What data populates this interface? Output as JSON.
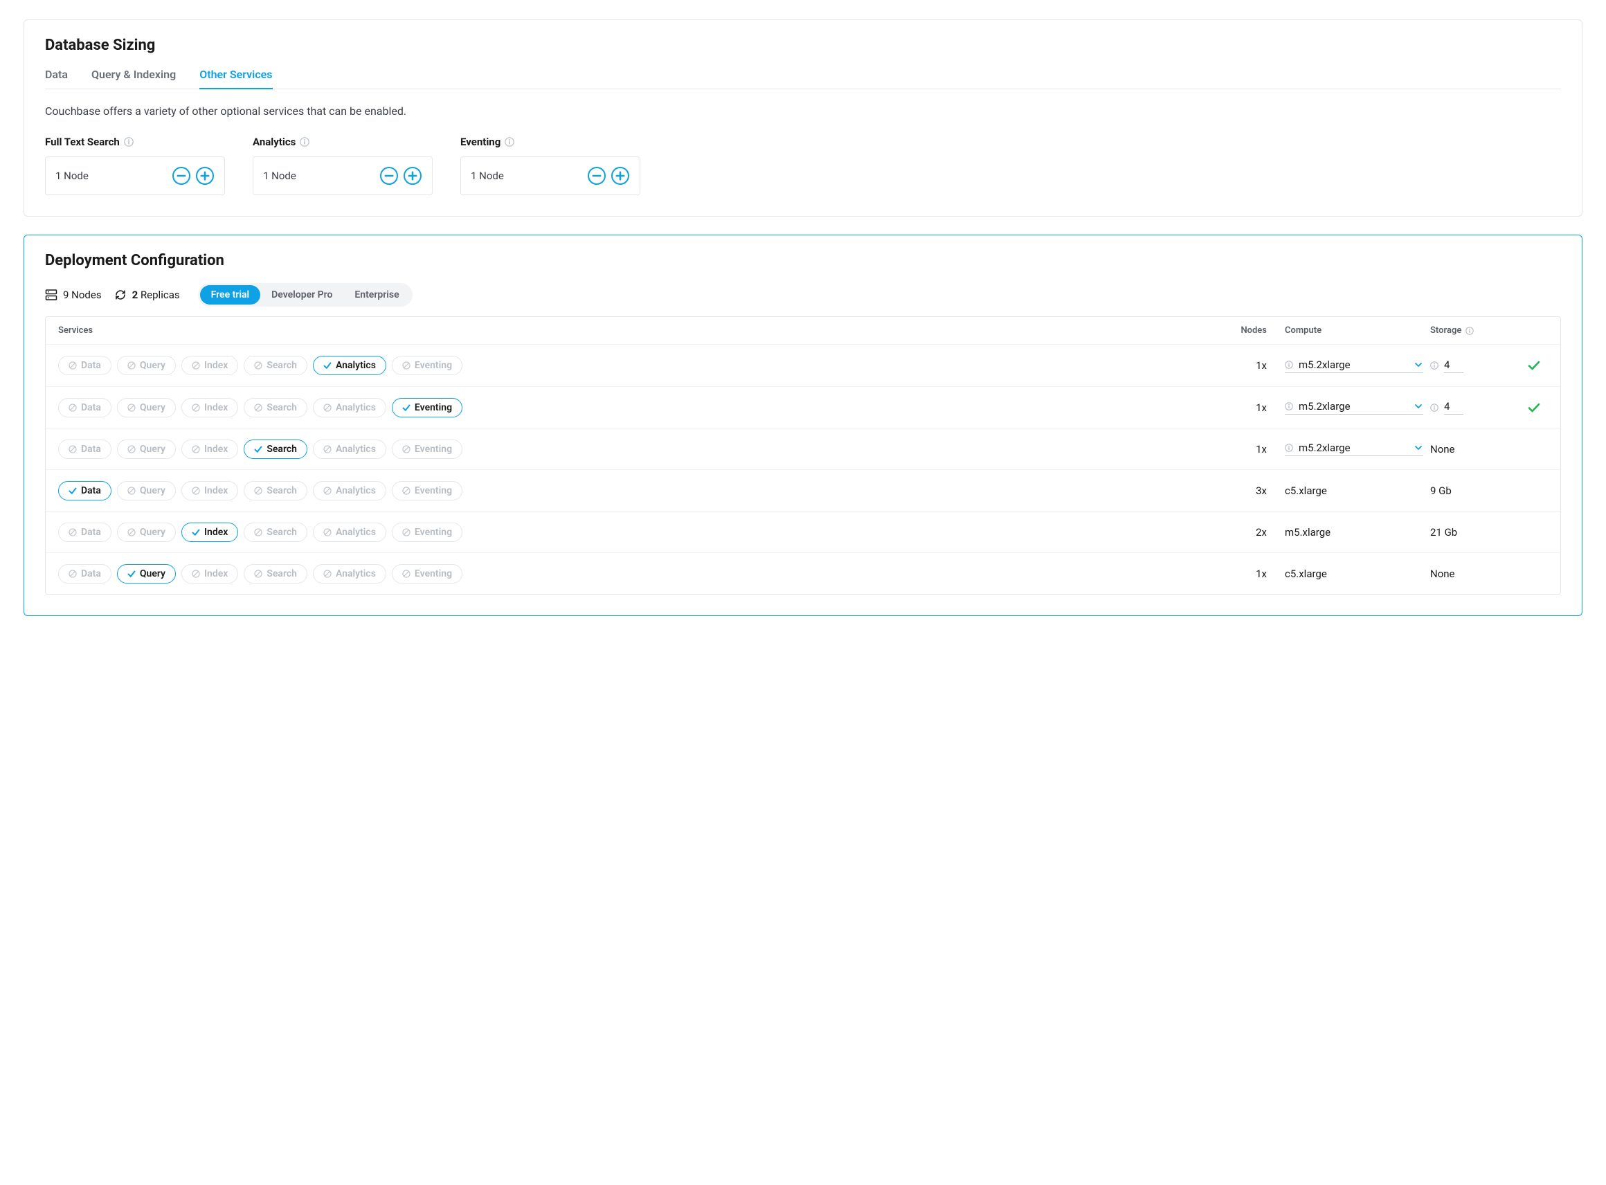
{
  "colors": {
    "accent": "#0ea1e6",
    "border": "#e5e7eb",
    "text": "#1a1a1a",
    "muted": "#6b7177",
    "disabled": "#b7bcc2",
    "success": "#1eb553",
    "pill_bg": "#f1f3f5"
  },
  "sizing_panel": {
    "title": "Database Sizing",
    "tabs": [
      {
        "label": "Data",
        "active": false
      },
      {
        "label": "Query & Indexing",
        "active": false
      },
      {
        "label": "Other Services",
        "active": true
      }
    ],
    "description": "Couchbase offers a variety of other optional services that can be enabled.",
    "steppers": [
      {
        "label": "Full Text Search",
        "value": "1 Node"
      },
      {
        "label": "Analytics",
        "value": "1 Node"
      },
      {
        "label": "Eventing",
        "value": "1 Node"
      }
    ]
  },
  "deploy_panel": {
    "title": "Deployment Configuration",
    "nodes_count": "9",
    "nodes_label": "Nodes",
    "replicas_count": "2",
    "replicas_label": "Replicas",
    "tiers": [
      {
        "label": "Free trial",
        "active": true
      },
      {
        "label": "Developer Pro",
        "active": false
      },
      {
        "label": "Enterprise",
        "active": false
      }
    ],
    "columns": {
      "services": "Services",
      "nodes": "Nodes",
      "compute": "Compute",
      "storage": "Storage"
    },
    "rows": [
      {
        "active_service": "Analytics",
        "nodes": "1x",
        "compute": "m5.2xlarge",
        "compute_editable": true,
        "storage": "4",
        "storage_editable": true,
        "valid": true
      },
      {
        "active_service": "Eventing",
        "nodes": "1x",
        "compute": "m5.2xlarge",
        "compute_editable": true,
        "storage": "4",
        "storage_editable": true,
        "valid": true
      },
      {
        "active_service": "Search",
        "nodes": "1x",
        "compute": "m5.2xlarge",
        "compute_editable": true,
        "storage": "None",
        "storage_editable": false,
        "valid": false
      },
      {
        "active_service": "Data",
        "nodes": "3x",
        "compute": "c5.xlarge",
        "compute_editable": false,
        "storage": "9 Gb",
        "storage_editable": false,
        "valid": false
      },
      {
        "active_service": "Index",
        "nodes": "2x",
        "compute": "m5.xlarge",
        "compute_editable": false,
        "storage": "21 Gb",
        "storage_editable": false,
        "valid": false
      },
      {
        "active_service": "Query",
        "nodes": "1x",
        "compute": "c5.xlarge",
        "compute_editable": false,
        "storage": "None",
        "storage_editable": false,
        "valid": false
      }
    ],
    "service_order": [
      "Data",
      "Query",
      "Index",
      "Search",
      "Analytics",
      "Eventing"
    ]
  }
}
